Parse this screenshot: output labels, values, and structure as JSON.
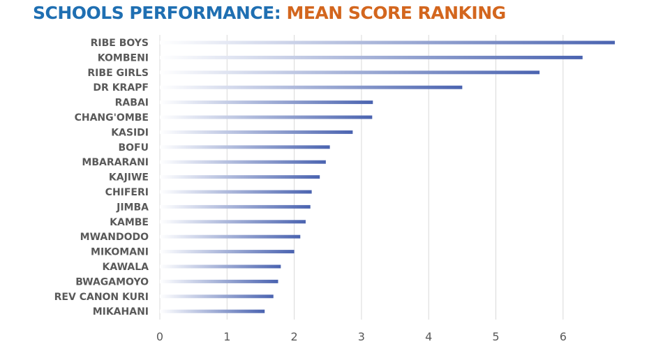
{
  "title": {
    "part1": "SCHOOLS PERFORMANCE:",
    "part2": "MEAN SCORE RANKING",
    "part1_color": "#1f6fb2",
    "part2_color": "#d3661e"
  },
  "colors": {
    "bar": "#4a63b0",
    "bar_fade_start": "#ffffff",
    "gridline": "#d9d9d9",
    "label": "#595959"
  },
  "chart_data": {
    "type": "bar",
    "orientation": "horizontal",
    "title": "SCHOOLS PERFORMANCE: MEAN SCORE RANKING",
    "categories": [
      "RIBE BOYS",
      "KOMBENI",
      "RIBE GIRLS",
      "DR KRAPF",
      "RABAI",
      "CHANG'OMBE",
      "KASIDI",
      "BOFU",
      "MBARARANI",
      "KAJIWE",
      "CHIFERI",
      "JIMBA",
      "KAMBE",
      "MWANDODO",
      "MIKOMANI",
      "KAWALA",
      "BWAGAMOYO",
      "REV CANON KURI",
      "MIKAHANI"
    ],
    "values": [
      6.77,
      6.29,
      5.65,
      4.5,
      3.17,
      3.16,
      2.87,
      2.53,
      2.47,
      2.38,
      2.26,
      2.24,
      2.17,
      2.09,
      2.0,
      1.8,
      1.76,
      1.69,
      1.56
    ],
    "xlim": [
      0,
      7
    ],
    "xticks": [
      0,
      1,
      2,
      3,
      4,
      5,
      6
    ],
    "xlabel": "",
    "ylabel": "",
    "grid": "vertical",
    "legend": "none",
    "bar_style": "gradient fading to white toward the left"
  }
}
